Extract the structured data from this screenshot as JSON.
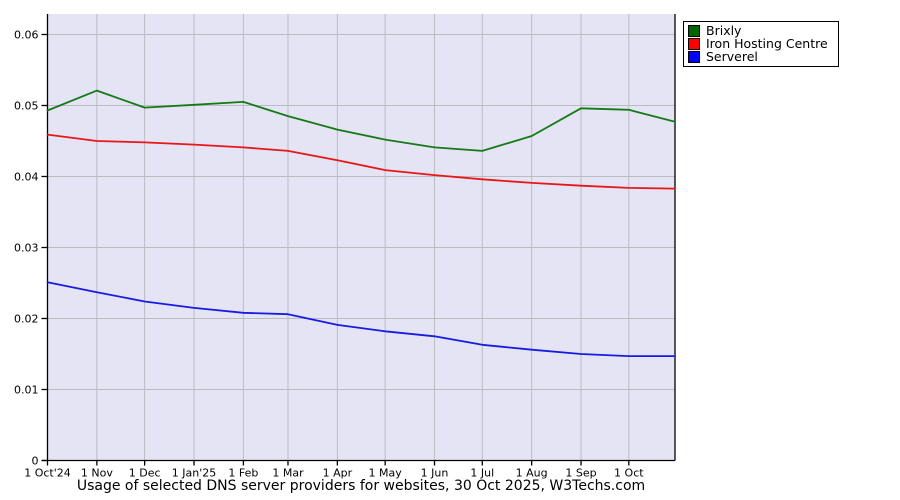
{
  "caption": "Usage of selected DNS server providers for websites, 30 Oct 2025, W3Techs.com",
  "colors": {
    "page_bg": "#ffffff",
    "plot_bg": "#e4e4f5",
    "grid": "#bbbbc2",
    "axis": "#000000"
  },
  "chart_data": {
    "type": "line",
    "title": "",
    "xlabel": "",
    "ylabel": "",
    "grid": true,
    "legend_position": "outside-top-right",
    "y_axis": {
      "range": [
        0,
        0.063
      ],
      "tick_values": [
        0,
        0.01,
        0.02,
        0.03,
        0.04,
        0.05,
        0.06
      ],
      "tick_labels": [
        "0",
        "0.01",
        "0.02",
        "0.03",
        "0.04",
        "0.05",
        "0.06"
      ]
    },
    "x_axis": {
      "unit": "days since 1 Oct 2024",
      "range": [
        0,
        394
      ],
      "tick_days": [
        0,
        31,
        61,
        92,
        123,
        151,
        182,
        212,
        243,
        273,
        304,
        335,
        365
      ],
      "tick_labels": [
        "1 Oct'24",
        "1 Nov",
        "1 Dec",
        "1 Jan'25",
        "1 Feb",
        "1 Mar",
        "1 Apr",
        "1 May",
        "1 Jun",
        "1 Jul",
        "1 Aug",
        "1 Sep",
        "1 Oct"
      ]
    },
    "x_days": [
      0,
      31,
      61,
      92,
      123,
      151,
      182,
      212,
      243,
      273,
      304,
      335,
      365,
      394
    ],
    "series": [
      {
        "name": "Brixly",
        "line_color": "#157a15",
        "swatch_color": "#006400",
        "values": [
          0.0493,
          0.0521,
          0.0497,
          0.0501,
          0.0505,
          0.0485,
          0.0466,
          0.0452,
          0.0441,
          0.0436,
          0.0457,
          0.0496,
          0.0494,
          0.0477
        ]
      },
      {
        "name": "Iron Hosting Centre",
        "line_color": "#e81717",
        "swatch_color": "#ff0000",
        "values": [
          0.0459,
          0.045,
          0.0448,
          0.0445,
          0.0441,
          0.0436,
          0.0423,
          0.0409,
          0.0402,
          0.0396,
          0.0391,
          0.0387,
          0.0384,
          0.0383
        ]
      },
      {
        "name": "Serverel",
        "line_color": "#1a1ae0",
        "swatch_color": "#0000ff",
        "values": [
          0.0251,
          0.0237,
          0.0224,
          0.0215,
          0.0208,
          0.0206,
          0.0191,
          0.0182,
          0.0175,
          0.0163,
          0.0156,
          0.015,
          0.0147,
          0.0147
        ]
      }
    ]
  }
}
